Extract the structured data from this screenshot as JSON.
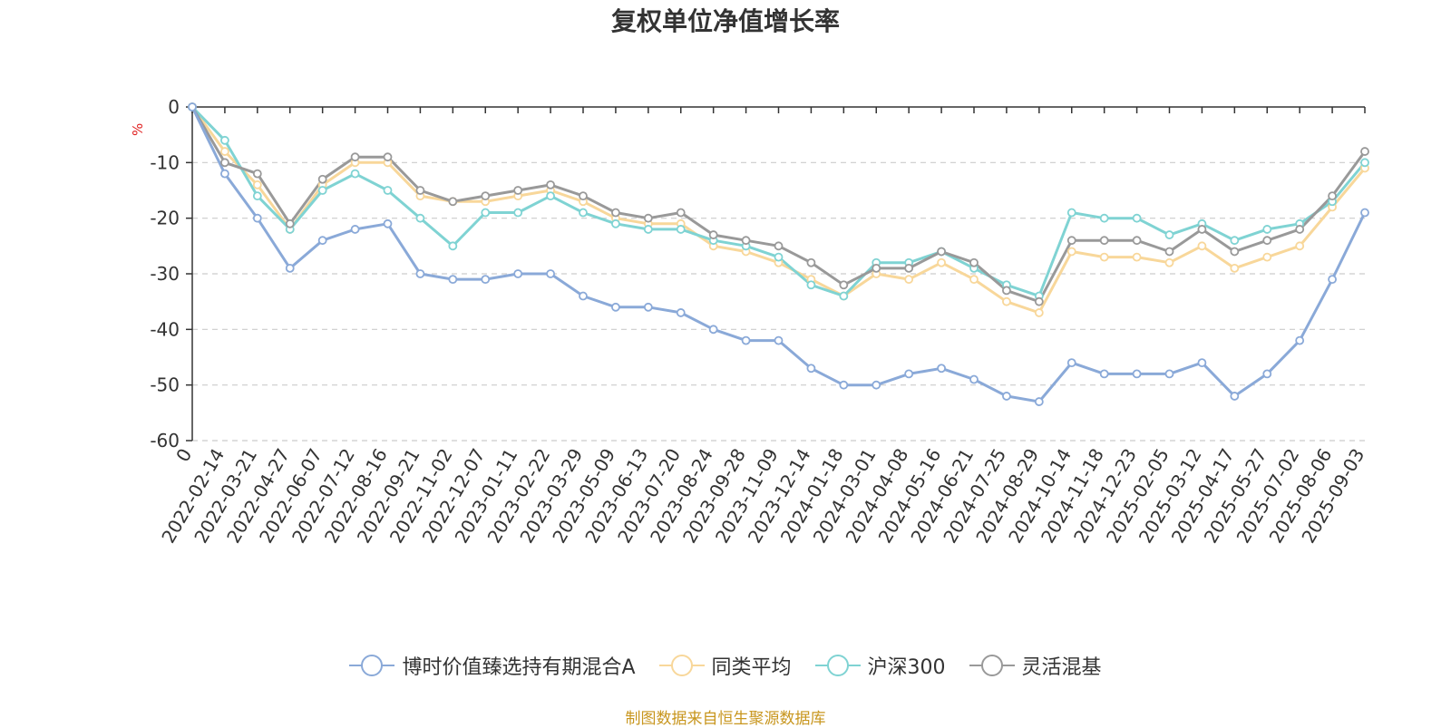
{
  "title": "复权单位净值增长率",
  "source": "制图数据来自恒生聚源数据库",
  "chart_data": {
    "type": "line",
    "ylabel": "%",
    "ylim": [
      -60,
      0
    ],
    "yticks": [
      0,
      -10,
      -20,
      -30,
      -40,
      -50,
      -60
    ],
    "grid": "horizontal-dashed",
    "legend_position": "bottom",
    "x_tick_labels": [
      "0",
      "2022-02-14",
      "2022-03-21",
      "2022-04-27",
      "2022-06-07",
      "2022-07-12",
      "2022-08-16",
      "2022-09-21",
      "2022-11-02",
      "2022-12-07",
      "2023-01-11",
      "2023-02-22",
      "2023-03-29",
      "2023-05-09",
      "2023-06-13",
      "2023-07-20",
      "2023-08-24",
      "2023-09-28",
      "2023-11-09",
      "2023-12-14",
      "2024-01-18",
      "2024-03-01",
      "2024-04-08",
      "2024-05-16",
      "2024-06-21",
      "2024-07-25",
      "2024-08-29",
      "2024-10-14",
      "2024-11-18",
      "2024-12-23",
      "2025-02-05",
      "2025-03-12",
      "2025-04-17",
      "2025-05-27",
      "2025-07-02",
      "2025-08-06",
      "2025-09-03"
    ],
    "series": [
      {
        "name": "博时价值臻选持有期混合A",
        "color": "#8aa9d8",
        "values": [
          0,
          -12,
          -20,
          -29,
          -24,
          -22,
          -21,
          -30,
          -31,
          -31,
          -30,
          -30,
          -34,
          -36,
          -36,
          -37,
          -40,
          -42,
          -42,
          -47,
          -50,
          -50,
          -48,
          -47,
          -49,
          -52,
          -53,
          -46,
          -48,
          -48,
          -48,
          -46,
          -52,
          -48,
          -42,
          -31,
          -19
        ]
      },
      {
        "name": "同类平均",
        "color": "#f8d79a",
        "values": [
          0,
          -8,
          -14,
          -22,
          -14,
          -10,
          -10,
          -16,
          -17,
          -17,
          -16,
          -15,
          -17,
          -20,
          -21,
          -21,
          -25,
          -26,
          -28,
          -31,
          -34,
          -30,
          -31,
          -28,
          -31,
          -35,
          -37,
          -26,
          -27,
          -27,
          -28,
          -25,
          -29,
          -27,
          -25,
          -18,
          -11
        ]
      },
      {
        "name": "沪深300",
        "color": "#7fd3d3",
        "values": [
          0,
          -6,
          -16,
          -22,
          -15,
          -12,
          -15,
          -20,
          -25,
          -19,
          -19,
          -16,
          -19,
          -21,
          -22,
          -22,
          -24,
          -25,
          -27,
          -32,
          -34,
          -28,
          -28,
          -26,
          -29,
          -32,
          -34,
          -19,
          -20,
          -20,
          -23,
          -21,
          -24,
          -22,
          -21,
          -17,
          -10
        ]
      },
      {
        "name": "灵活混基",
        "color": "#999999",
        "values": [
          0,
          -10,
          -12,
          -21,
          -13,
          -9,
          -9,
          -15,
          -17,
          -16,
          -15,
          -14,
          -16,
          -19,
          -20,
          -19,
          -23,
          -24,
          -25,
          -28,
          -32,
          -29,
          -29,
          -26,
          -28,
          -33,
          -35,
          -24,
          -24,
          -24,
          -26,
          -22,
          -26,
          -24,
          -22,
          -16,
          -8
        ]
      }
    ]
  }
}
